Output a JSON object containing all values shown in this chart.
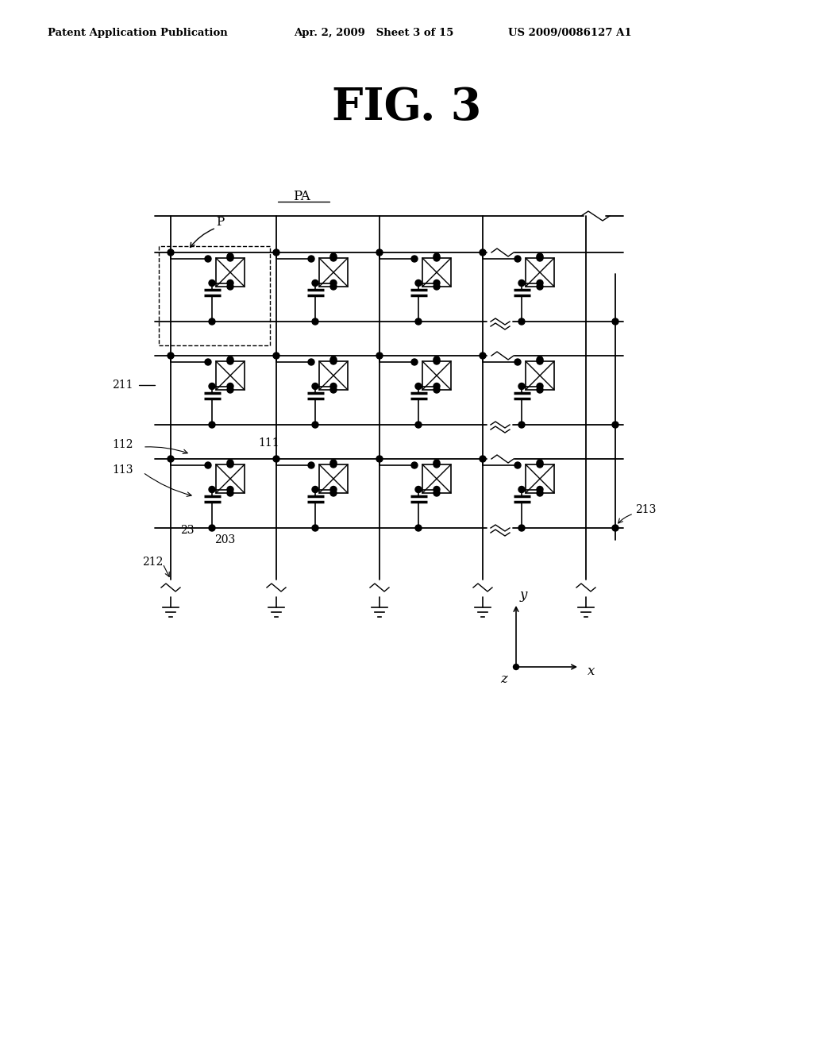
{
  "title": "FIG. 3",
  "header_left": "Patent Application Publication",
  "header_mid": "Apr. 2, 2009   Sheet 3 of 15",
  "header_right": "US 2009/0086127 A1",
  "label_PA": "PA",
  "label_P": "P",
  "label_211": "211",
  "label_212": "212",
  "label_213": "213",
  "label_112": "112",
  "label_111": "111",
  "label_113": "113",
  "label_23": "23",
  "label_203": "203",
  "bg_color": "#ffffff",
  "line_color": "#000000",
  "dashed_color": "#000000"
}
